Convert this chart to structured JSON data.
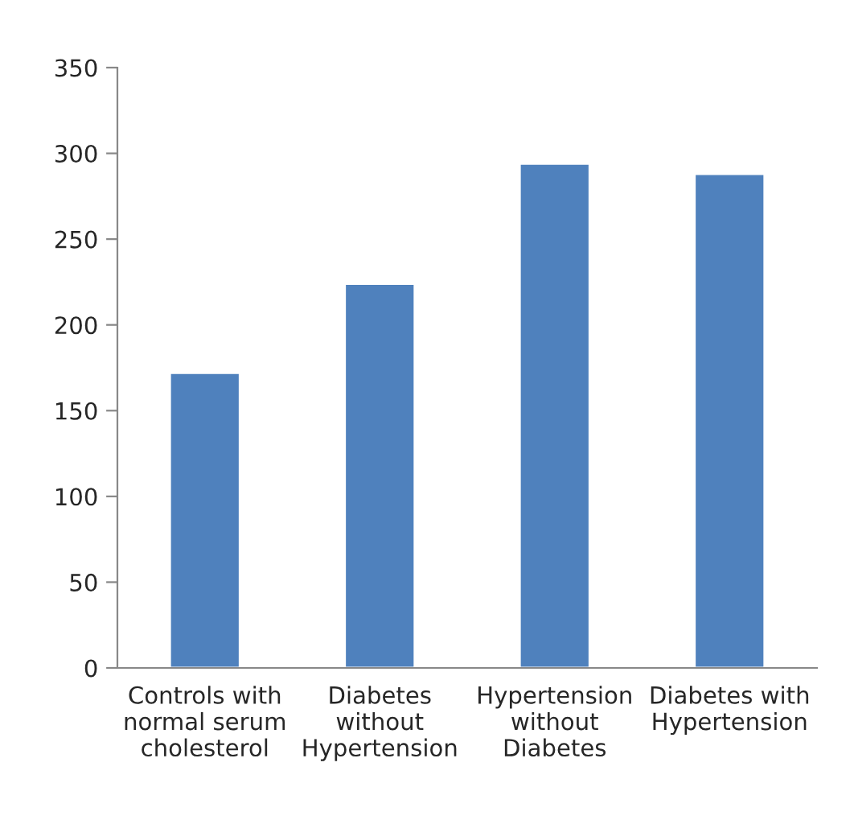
{
  "chart_data": {
    "type": "bar",
    "categories": [
      "Controls with\nnormal serum\ncholesterol",
      "Diabetes\nwithout\nHypertension",
      "Hypertension\nwithout\nDiabetes",
      "Diabetes with\nHypertension"
    ],
    "values": [
      172,
      224,
      294,
      288
    ],
    "color": "#4f81bd",
    "ylim": [
      0,
      350
    ],
    "yticks": [
      0,
      50,
      100,
      150,
      200,
      250,
      300,
      350
    ],
    "grid": false,
    "legend": false
  }
}
